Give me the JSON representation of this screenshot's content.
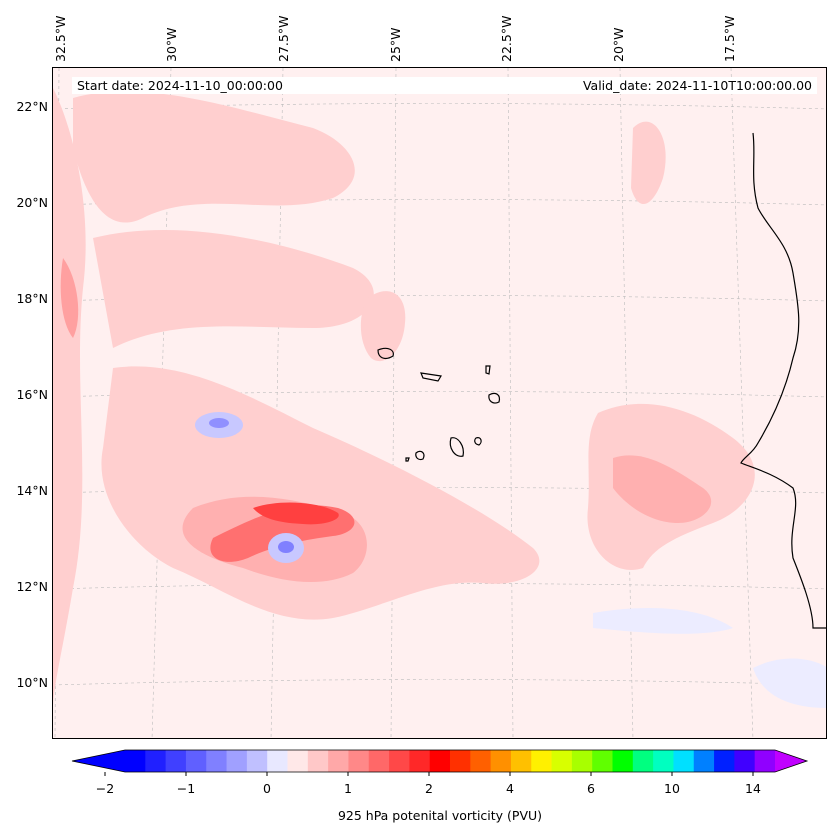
{
  "start_date": "Start date: 2024-11-10_00:00:00",
  "valid_date": "Valid_date: 2024-11-10T10:00:00.00",
  "longitude_labels": [
    "32.5°W",
    "30°W",
    "27.5°W",
    "25°W",
    "22.5°W",
    "20°W",
    "17.5°W"
  ],
  "latitude_labels": [
    "22°N",
    "20°N",
    "18°N",
    "16°N",
    "14°N",
    "12°N",
    "10°N"
  ],
  "colorbar": {
    "title": "925 hPa potenital vorticity (PVU)",
    "tick_labels": [
      "−2",
      "−1",
      "0",
      "1",
      "2",
      "4",
      "6",
      "10",
      "14"
    ],
    "colors": [
      "#0000ff",
      "#2020ff",
      "#4040ff",
      "#6060ff",
      "#8080ff",
      "#a0a0ff",
      "#c0c0ff",
      "#e8e8ff",
      "#ffe8e8",
      "#ffc8c8",
      "#ffa8a8",
      "#ff8888",
      "#ff6868",
      "#ff4848",
      "#ff2828",
      "#ff0000",
      "#ff3000",
      "#ff6000",
      "#ff9000",
      "#ffc000",
      "#fff000",
      "#d8ff00",
      "#a8ff00",
      "#60ff00",
      "#00ff00",
      "#00ff80",
      "#00ffc0",
      "#00e0ff",
      "#0080ff",
      "#0020ff",
      "#4000ff",
      "#9000ff"
    ]
  }
}
